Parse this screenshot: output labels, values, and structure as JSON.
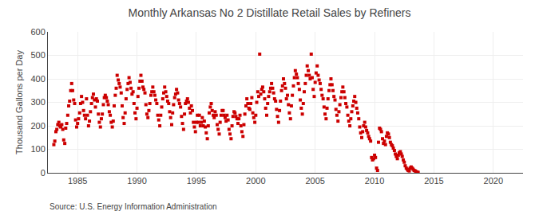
{
  "chart_data": {
    "type": "scatter",
    "title": "Monthly Arkansas No 2 Distillate Retail Sales by Refiners",
    "ylabel": "Thousand Gallons per Day",
    "annotations": [
      "Source: U.S. Energy Information Administration"
    ],
    "color": "#cc0000",
    "marker": "square",
    "grid": true,
    "xlim": [
      1982.5,
      2022.5
    ],
    "xticks": [
      1985,
      1990,
      1995,
      2000,
      2005,
      2010,
      2015,
      2020
    ],
    "ylim": [
      0,
      600
    ],
    "yticks": [
      0,
      100,
      200,
      300,
      400,
      500,
      600
    ],
    "x": [
      1983.0,
      1983.08,
      1983.17,
      1983.25,
      1983.33,
      1983.42,
      1983.5,
      1983.58,
      1983.67,
      1983.75,
      1983.83,
      1983.92,
      1984.0,
      1984.08,
      1984.17,
      1984.25,
      1984.33,
      1984.42,
      1984.5,
      1984.58,
      1984.67,
      1984.75,
      1984.83,
      1984.92,
      1985.0,
      1985.08,
      1985.17,
      1985.25,
      1985.33,
      1985.42,
      1985.5,
      1985.58,
      1985.67,
      1985.75,
      1985.83,
      1985.92,
      1986.0,
      1986.08,
      1986.17,
      1986.25,
      1986.33,
      1986.42,
      1986.5,
      1986.58,
      1986.67,
      1986.75,
      1986.83,
      1986.92,
      1987.0,
      1987.08,
      1987.17,
      1987.25,
      1987.33,
      1987.42,
      1987.5,
      1987.58,
      1987.67,
      1987.75,
      1987.83,
      1987.92,
      1988.0,
      1988.08,
      1988.17,
      1988.25,
      1988.33,
      1988.42,
      1988.5,
      1988.58,
      1988.67,
      1988.75,
      1988.83,
      1988.92,
      1989.0,
      1989.08,
      1989.17,
      1989.25,
      1989.33,
      1989.42,
      1989.5,
      1989.58,
      1989.67,
      1989.75,
      1989.83,
      1989.92,
      1990.0,
      1990.08,
      1990.17,
      1990.25,
      1990.33,
      1990.42,
      1990.5,
      1990.58,
      1990.67,
      1990.75,
      1990.83,
      1990.92,
      1991.0,
      1991.08,
      1991.17,
      1991.25,
      1991.33,
      1991.42,
      1991.5,
      1991.58,
      1991.67,
      1991.75,
      1991.83,
      1991.92,
      1992.0,
      1992.08,
      1992.17,
      1992.25,
      1992.33,
      1992.42,
      1992.5,
      1992.58,
      1992.67,
      1992.75,
      1992.83,
      1992.92,
      1993.0,
      1993.08,
      1993.17,
      1993.25,
      1993.33,
      1993.42,
      1993.5,
      1993.58,
      1993.67,
      1993.75,
      1993.83,
      1993.92,
      1994.0,
      1994.08,
      1994.17,
      1994.25,
      1994.33,
      1994.42,
      1994.5,
      1994.58,
      1994.67,
      1994.75,
      1994.83,
      1994.92,
      1995.0,
      1995.08,
      1995.17,
      1995.25,
      1995.33,
      1995.42,
      1995.5,
      1995.58,
      1995.67,
      1995.75,
      1995.83,
      1995.92,
      1996.0,
      1996.08,
      1996.17,
      1996.25,
      1996.33,
      1996.42,
      1996.5,
      1996.58,
      1996.67,
      1996.75,
      1996.83,
      1996.92,
      1997.0,
      1997.08,
      1997.17,
      1997.25,
      1997.33,
      1997.42,
      1997.5,
      1997.58,
      1997.67,
      1997.75,
      1997.83,
      1997.92,
      1998.0,
      1998.08,
      1998.17,
      1998.25,
      1998.33,
      1998.42,
      1998.5,
      1998.58,
      1998.67,
      1998.75,
      1998.83,
      1998.92,
      1999.0,
      1999.08,
      1999.17,
      1999.25,
      1999.33,
      1999.42,
      1999.5,
      1999.58,
      1999.67,
      1999.75,
      1999.83,
      1999.92,
      2000.0,
      2000.08,
      2000.17,
      2000.25,
      2000.33,
      2000.42,
      2000.5,
      2000.58,
      2000.67,
      2000.75,
      2000.83,
      2000.92,
      2001.0,
      2001.08,
      2001.17,
      2001.25,
      2001.33,
      2001.42,
      2001.5,
      2001.58,
      2001.67,
      2001.75,
      2001.83,
      2001.92,
      2002.0,
      2002.08,
      2002.17,
      2002.25,
      2002.33,
      2002.42,
      2002.5,
      2002.58,
      2002.67,
      2002.75,
      2002.83,
      2002.92,
      2003.0,
      2003.08,
      2003.17,
      2003.25,
      2003.33,
      2003.42,
      2003.5,
      2003.58,
      2003.67,
      2003.75,
      2003.83,
      2003.92,
      2004.0,
      2004.08,
      2004.17,
      2004.25,
      2004.33,
      2004.42,
      2004.5,
      2004.58,
      2004.67,
      2004.75,
      2004.83,
      2004.92,
      2005.0,
      2005.08,
      2005.17,
      2005.25,
      2005.33,
      2005.42,
      2005.5,
      2005.58,
      2005.67,
      2005.75,
      2005.83,
      2005.92,
      2006.0,
      2006.08,
      2006.17,
      2006.25,
      2006.33,
      2006.42,
      2006.5,
      2006.58,
      2006.67,
      2006.75,
      2006.83,
      2006.92,
      2007.0,
      2007.08,
      2007.17,
      2007.25,
      2007.33,
      2007.42,
      2007.5,
      2007.58,
      2007.67,
      2007.75,
      2007.83,
      2007.92,
      2008.0,
      2008.08,
      2008.17,
      2008.25,
      2008.33,
      2008.42,
      2008.5,
      2008.58,
      2008.67,
      2008.75,
      2008.83,
      2008.92,
      2009.0,
      2009.08,
      2009.17,
      2009.25,
      2009.33,
      2009.42,
      2009.5,
      2009.58,
      2009.67,
      2009.75,
      2009.83,
      2009.92,
      2010.0,
      2010.08,
      2010.17,
      2010.25,
      2010.33,
      2010.42,
      2010.5,
      2010.58,
      2010.67,
      2010.75,
      2010.83,
      2010.92,
      2011.0,
      2011.08,
      2011.17,
      2011.25,
      2011.33,
      2011.42,
      2011.5,
      2011.58,
      2011.67,
      2011.75,
      2011.83,
      2011.92,
      2012.0,
      2012.08,
      2012.17,
      2012.25,
      2012.33,
      2012.42,
      2012.5,
      2012.58,
      2012.67,
      2012.75,
      2012.83,
      2012.92,
      2013.0,
      2013.08,
      2013.17,
      2013.25,
      2013.33,
      2013.42,
      2013.5,
      2013.58,
      2013.67
    ],
    "values": [
      120,
      135,
      175,
      185,
      205,
      215,
      200,
      195,
      205,
      185,
      140,
      125,
      190,
      210,
      245,
      285,
      305,
      350,
      380,
      350,
      310,
      295,
      225,
      195,
      210,
      230,
      255,
      295,
      325,
      300,
      265,
      245,
      230,
      315,
      245,
      200,
      220,
      260,
      295,
      320,
      335,
      310,
      280,
      315,
      305,
      250,
      215,
      195,
      230,
      250,
      290,
      320,
      330,
      320,
      305,
      290,
      260,
      245,
      215,
      195,
      220,
      285,
      330,
      360,
      415,
      395,
      380,
      365,
      340,
      285,
      235,
      210,
      255,
      315,
      355,
      380,
      405,
      385,
      360,
      335,
      345,
      295,
      255,
      230,
      275,
      325,
      360,
      390,
      415,
      390,
      365,
      355,
      340,
      290,
      250,
      235,
      265,
      295,
      330,
      345,
      365,
      345,
      330,
      310,
      295,
      245,
      225,
      200,
      245,
      280,
      315,
      340,
      365,
      345,
      325,
      305,
      295,
      260,
      235,
      205,
      255,
      290,
      320,
      335,
      355,
      340,
      310,
      295,
      280,
      240,
      210,
      185,
      250,
      295,
      305,
      315,
      300,
      275,
      255,
      285,
      265,
      215,
      195,
      175,
      215,
      245,
      215,
      245,
      200,
      215,
      235,
      200,
      220,
      195,
      170,
      145,
      200,
      255,
      280,
      295,
      265,
      245,
      235,
      260,
      245,
      205,
      185,
      165,
      215,
      245,
      265,
      265,
      245,
      235,
      220,
      245,
      225,
      185,
      165,
      145,
      200,
      240,
      260,
      255,
      240,
      230,
      210,
      230,
      245,
      200,
      175,
      155,
      205,
      250,
      285,
      315,
      295,
      275,
      270,
      295,
      320,
      255,
      235,
      215,
      245,
      300,
      345,
      325,
      505,
      335,
      355,
      365,
      345,
      315,
      275,
      245,
      295,
      325,
      345,
      360,
      380,
      360,
      340,
      315,
      305,
      270,
      240,
      215,
      265,
      305,
      350,
      370,
      400,
      380,
      360,
      315,
      330,
      290,
      255,
      230,
      285,
      330,
      370,
      405,
      435,
      420,
      405,
      380,
      355,
      310,
      275,
      250,
      295,
      345,
      380,
      415,
      455,
      435,
      415,
      400,
      505,
      405,
      355,
      325,
      385,
      425,
      455,
      415,
      395,
      380,
      355,
      330,
      315,
      280,
      250,
      230,
      275,
      315,
      350,
      375,
      400,
      375,
      350,
      325,
      310,
      270,
      245,
      220,
      260,
      290,
      320,
      345,
      365,
      345,
      320,
      295,
      280,
      245,
      220,
      200,
      230,
      260,
      285,
      305,
      325,
      300,
      275,
      255,
      230,
      195,
      170,
      150,
      175,
      200,
      215,
      195,
      180,
      170,
      155,
      145,
      135,
      65,
      55,
      60,
      75,
      65,
      20,
      10,
      130,
      190,
      185,
      175,
      145,
      125,
      135,
      120,
      155,
      170,
      165,
      150,
      130,
      120,
      115,
      105,
      95,
      80,
      70,
      60,
      75,
      85,
      90,
      80,
      70,
      55,
      45,
      30,
      20,
      15,
      10,
      8,
      20,
      25,
      20,
      15,
      10,
      8,
      5,
      3,
      2
    ]
  }
}
